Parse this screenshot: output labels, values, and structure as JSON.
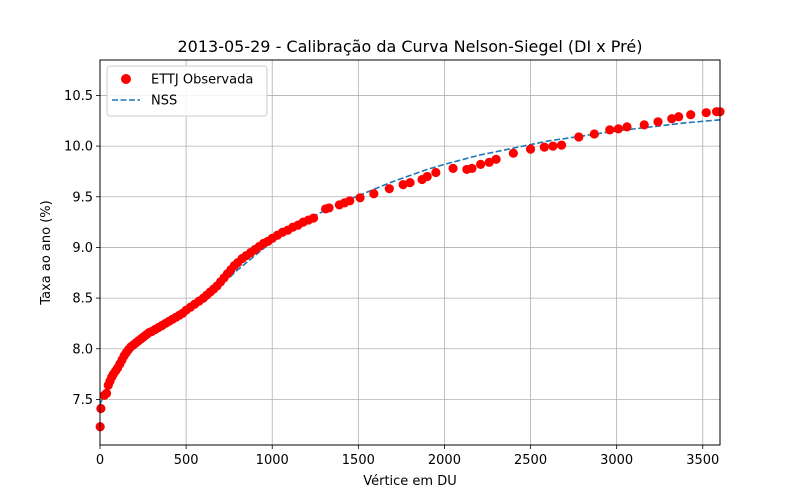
{
  "chart_data": {
    "type": "scatter",
    "title": "2013-05-29 - Calibração da Curva Nelson-Siegel (DI x Pré)",
    "xlabel": "Vértice em DU",
    "ylabel": "Taxa ao ano (%)",
    "xlim": [
      0,
      3600
    ],
    "ylim": [
      7.05,
      10.85
    ],
    "xticks": [
      0,
      500,
      1000,
      1500,
      2000,
      2500,
      3000,
      3500
    ],
    "xtick_labels": [
      "0",
      "500",
      "1000",
      "1500",
      "2000",
      "2500",
      "3000",
      "3500"
    ],
    "yticks": [
      7.5,
      8.0,
      8.5,
      9.0,
      9.5,
      10.0,
      10.5
    ],
    "ytick_labels": [
      "7.5",
      "8.0",
      "8.5",
      "9.0",
      "9.5",
      "10.0",
      "10.5"
    ],
    "grid": true,
    "legend_position": "top-left",
    "series": [
      {
        "name": "ETTJ Observada",
        "kind": "scatter",
        "color": "#ff0000",
        "points": [
          [
            1,
            7.23
          ],
          [
            5,
            7.41
          ],
          [
            25,
            7.54
          ],
          [
            38,
            7.56
          ],
          [
            48,
            7.64
          ],
          [
            58,
            7.68
          ],
          [
            68,
            7.72
          ],
          [
            78,
            7.75
          ],
          [
            90,
            7.78
          ],
          [
            102,
            7.81
          ],
          [
            115,
            7.85
          ],
          [
            128,
            7.89
          ],
          [
            140,
            7.93
          ],
          [
            152,
            7.96
          ],
          [
            165,
            7.99
          ],
          [
            180,
            8.02
          ],
          [
            195,
            8.04
          ],
          [
            210,
            8.06
          ],
          [
            225,
            8.08
          ],
          [
            240,
            8.1
          ],
          [
            255,
            8.12
          ],
          [
            270,
            8.14
          ],
          [
            285,
            8.16
          ],
          [
            300,
            8.17
          ],
          [
            320,
            8.19
          ],
          [
            340,
            8.21
          ],
          [
            360,
            8.23
          ],
          [
            380,
            8.25
          ],
          [
            400,
            8.27
          ],
          [
            420,
            8.29
          ],
          [
            440,
            8.31
          ],
          [
            460,
            8.33
          ],
          [
            480,
            8.35
          ],
          [
            500,
            8.38
          ],
          [
            525,
            8.41
          ],
          [
            550,
            8.44
          ],
          [
            575,
            8.47
          ],
          [
            600,
            8.5
          ],
          [
            620,
            8.53
          ],
          [
            640,
            8.56
          ],
          [
            660,
            8.59
          ],
          [
            680,
            8.62
          ],
          [
            700,
            8.66
          ],
          [
            720,
            8.7
          ],
          [
            740,
            8.74
          ],
          [
            760,
            8.78
          ],
          [
            780,
            8.82
          ],
          [
            800,
            8.85
          ],
          [
            825,
            8.89
          ],
          [
            850,
            8.92
          ],
          [
            875,
            8.95
          ],
          [
            900,
            8.98
          ],
          [
            925,
            9.01
          ],
          [
            950,
            9.04
          ],
          [
            975,
            9.06
          ],
          [
            1000,
            9.09
          ],
          [
            1030,
            9.12
          ],
          [
            1060,
            9.15
          ],
          [
            1090,
            9.17
          ],
          [
            1120,
            9.2
          ],
          [
            1150,
            9.22
          ],
          [
            1180,
            9.25
          ],
          [
            1210,
            9.27
          ],
          [
            1240,
            9.29
          ],
          [
            1310,
            9.38
          ],
          [
            1330,
            9.39
          ],
          [
            1390,
            9.42
          ],
          [
            1420,
            9.44
          ],
          [
            1450,
            9.46
          ],
          [
            1510,
            9.49
          ],
          [
            1590,
            9.53
          ],
          [
            1680,
            9.58
          ],
          [
            1760,
            9.62
          ],
          [
            1800,
            9.64
          ],
          [
            1870,
            9.67
          ],
          [
            1900,
            9.7
          ],
          [
            1950,
            9.74
          ],
          [
            2050,
            9.78
          ],
          [
            2130,
            9.77
          ],
          [
            2160,
            9.78
          ],
          [
            2210,
            9.82
          ],
          [
            2260,
            9.84
          ],
          [
            2300,
            9.87
          ],
          [
            2400,
            9.93
          ],
          [
            2500,
            9.97
          ],
          [
            2580,
            9.99
          ],
          [
            2630,
            10.0
          ],
          [
            2680,
            10.01
          ],
          [
            2780,
            10.09
          ],
          [
            2870,
            10.12
          ],
          [
            2960,
            10.16
          ],
          [
            3010,
            10.17
          ],
          [
            3060,
            10.19
          ],
          [
            3160,
            10.21
          ],
          [
            3240,
            10.24
          ],
          [
            3320,
            10.27
          ],
          [
            3360,
            10.29
          ],
          [
            3430,
            10.31
          ],
          [
            3520,
            10.33
          ],
          [
            3580,
            10.34
          ],
          [
            3600,
            10.34
          ]
        ]
      },
      {
        "name": "NSS",
        "kind": "line",
        "style": "dashed",
        "color": "#1f77b4",
        "points": [
          [
            0,
            7.45
          ],
          [
            50,
            7.67
          ],
          [
            100,
            7.83
          ],
          [
            150,
            7.95
          ],
          [
            200,
            8.04
          ],
          [
            250,
            8.11
          ],
          [
            300,
            8.17
          ],
          [
            350,
            8.22
          ],
          [
            400,
            8.27
          ],
          [
            450,
            8.32
          ],
          [
            500,
            8.37
          ],
          [
            550,
            8.43
          ],
          [
            600,
            8.49
          ],
          [
            650,
            8.56
          ],
          [
            700,
            8.63
          ],
          [
            750,
            8.7
          ],
          [
            800,
            8.78
          ],
          [
            850,
            8.85
          ],
          [
            900,
            8.92
          ],
          [
            950,
            8.99
          ],
          [
            1000,
            9.06
          ],
          [
            1100,
            9.17
          ],
          [
            1200,
            9.27
          ],
          [
            1300,
            9.36
          ],
          [
            1400,
            9.44
          ],
          [
            1500,
            9.51
          ],
          [
            1600,
            9.58
          ],
          [
            1700,
            9.65
          ],
          [
            1800,
            9.71
          ],
          [
            1900,
            9.77
          ],
          [
            2000,
            9.82
          ],
          [
            2200,
            9.91
          ],
          [
            2400,
            9.98
          ],
          [
            2600,
            10.05
          ],
          [
            2800,
            10.1
          ],
          [
            3000,
            10.15
          ],
          [
            3200,
            10.19
          ],
          [
            3400,
            10.23
          ],
          [
            3600,
            10.26
          ]
        ]
      }
    ]
  }
}
